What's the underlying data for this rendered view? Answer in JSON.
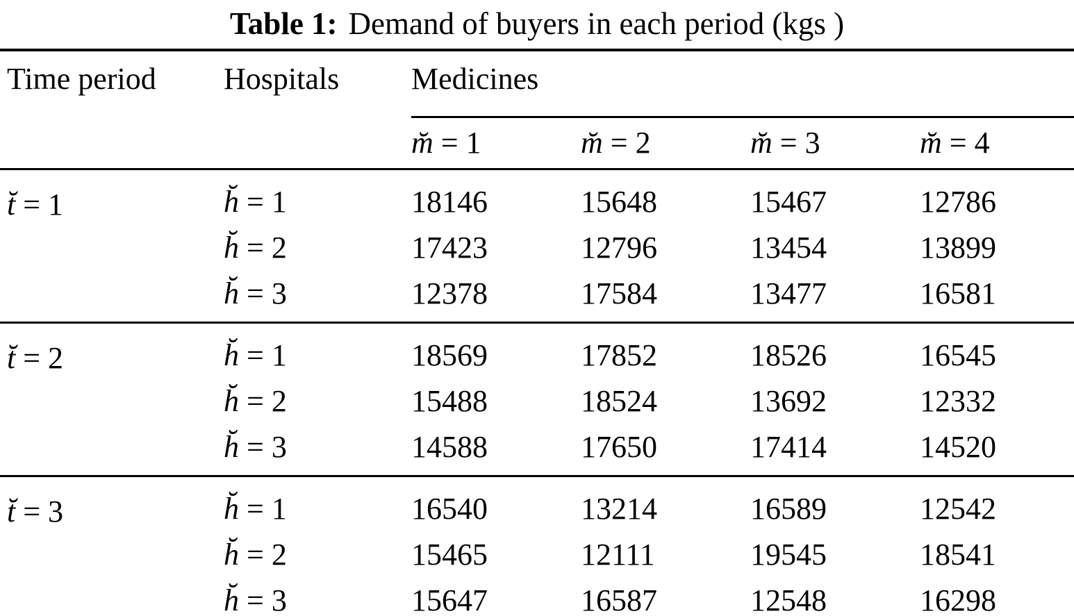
{
  "title": {
    "prefix": "Table 1:",
    "text": "Demand of buyers in each period (kgs )"
  },
  "table": {
    "headers": {
      "time_period": "Time period",
      "hospitals": "Hospitals",
      "medicines": "Medicines"
    },
    "medicine_columns": [
      {
        "var": "m̆",
        "rest": "= 1"
      },
      {
        "var": "m̆",
        "rest": "= 2"
      },
      {
        "var": "m̆",
        "rest": "= 3"
      },
      {
        "var": "m̆",
        "rest": "= 4"
      }
    ],
    "blocks": [
      {
        "time_var": "t̆",
        "time_rest": "= 1",
        "rows": [
          {
            "hospital_var": "h̆",
            "hospital_rest": "= 1",
            "values": [
              "18146",
              "15648",
              "15467",
              "12786"
            ]
          },
          {
            "hospital_var": "h̆",
            "hospital_rest": "= 2",
            "values": [
              "17423",
              "12796",
              "13454",
              "13899"
            ]
          },
          {
            "hospital_var": "h̆",
            "hospital_rest": "= 3",
            "values": [
              "12378",
              "17584",
              "13477",
              "16581"
            ]
          }
        ]
      },
      {
        "time_var": "t̆",
        "time_rest": "= 2",
        "rows": [
          {
            "hospital_var": "h̆",
            "hospital_rest": "= 1",
            "values": [
              "18569",
              "17852",
              "18526",
              "16545"
            ]
          },
          {
            "hospital_var": "h̆",
            "hospital_rest": "= 2",
            "values": [
              "15488",
              "18524",
              "13692",
              "12332"
            ]
          },
          {
            "hospital_var": "h̆",
            "hospital_rest": "= 3",
            "values": [
              "14588",
              "17650",
              "17414",
              "14520"
            ]
          }
        ]
      },
      {
        "time_var": "t̆",
        "time_rest": "= 3",
        "rows": [
          {
            "hospital_var": "h̆",
            "hospital_rest": "= 1",
            "values": [
              "16540",
              "13214",
              "16589",
              "12542"
            ]
          },
          {
            "hospital_var": "h̆",
            "hospital_rest": "= 2",
            "values": [
              "15465",
              "12111",
              "19545",
              "18541"
            ]
          },
          {
            "hospital_var": "h̆",
            "hospital_rest": "= 3",
            "values": [
              "15647",
              "16587",
              "12548",
              "16298"
            ]
          }
        ]
      }
    ]
  }
}
